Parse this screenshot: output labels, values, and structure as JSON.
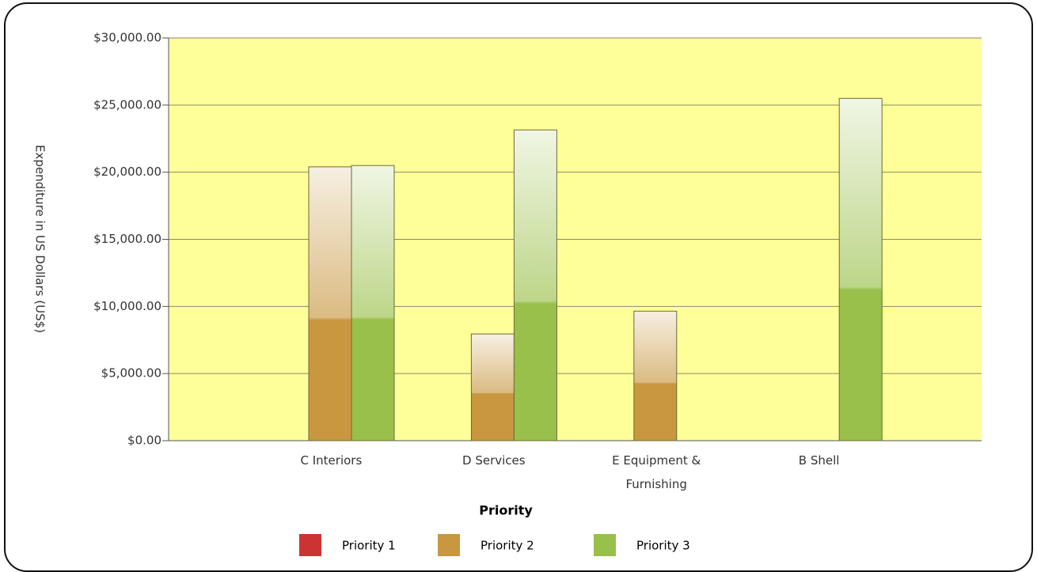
{
  "chart_data": {
    "type": "bar",
    "x_label": "Priority",
    "y_label": "Expenditure in US Dollars (US$)",
    "categories": [
      "C Interiors",
      "D Services",
      "E Equipment & Furnishing",
      "B Shell"
    ],
    "series": [
      {
        "name": "Priority 1",
        "color": "#cc3333",
        "values": [
          null,
          null,
          null,
          null
        ]
      },
      {
        "name": "Priority 2",
        "color": "#c8973f",
        "values": [
          20400,
          7950,
          9650,
          null
        ]
      },
      {
        "name": "Priority 3",
        "color": "#99c04a",
        "values": [
          20500,
          23150,
          null,
          25500
        ]
      }
    ],
    "ylim": [
      0,
      30000
    ],
    "yticks": [
      {
        "value": 0,
        "label": "$0.00"
      },
      {
        "value": 5000,
        "label": "$5,000.00"
      },
      {
        "value": 10000,
        "label": "$10,000.00"
      },
      {
        "value": 15000,
        "label": "$15,000.00"
      },
      {
        "value": 20000,
        "label": "$20,000.00"
      },
      {
        "value": 25000,
        "label": "$25,000.00"
      },
      {
        "value": 30000,
        "label": "$30,000.00"
      }
    ],
    "grid": true,
    "plot_background": "#ffff99",
    "legend": "bottom"
  }
}
